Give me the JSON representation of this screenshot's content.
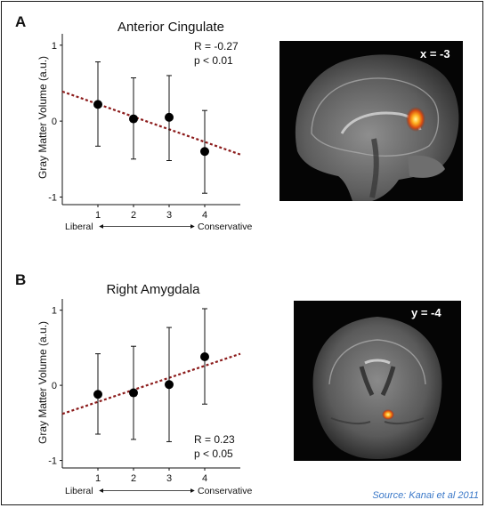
{
  "chart_data": [
    {
      "panel": "A",
      "type": "scatter",
      "title": "Anterior Cingulate",
      "ylabel": "Gray Matter Volume (a.u.)",
      "x": [
        1,
        2,
        3,
        4
      ],
      "y": [
        0.22,
        0.03,
        0.05,
        -0.4
      ],
      "yerr_low": [
        -0.33,
        -0.5,
        -0.52,
        -0.95
      ],
      "yerr_high": [
        0.78,
        0.57,
        0.6,
        0.14
      ],
      "trendline": {
        "x": [
          0,
          5
        ],
        "y": [
          0.39,
          -0.44
        ]
      },
      "xlim": [
        0,
        5
      ],
      "ylim": [
        -1.1,
        1.15
      ],
      "yticks": [
        "1",
        "0",
        "-1"
      ],
      "xticks": [
        "1",
        "2",
        "3",
        "4"
      ],
      "x_left_label": "Liberal",
      "x_right_label": "Conservative",
      "stats": [
        "R = -0.27",
        "p < 0.01"
      ],
      "image_label": "x = -3"
    },
    {
      "panel": "B",
      "type": "scatter",
      "title": "Right Amygdala",
      "ylabel": "Gray Matter Volume (a.u.)",
      "x": [
        1,
        2,
        3,
        4
      ],
      "y": [
        -0.12,
        -0.1,
        0.01,
        0.38
      ],
      "yerr_low": [
        -0.65,
        -0.72,
        -0.75,
        -0.25
      ],
      "yerr_high": [
        0.42,
        0.52,
        0.77,
        1.02
      ],
      "trendline": {
        "x": [
          0,
          5
        ],
        "y": [
          -0.38,
          0.42
        ]
      },
      "xlim": [
        0,
        5
      ],
      "ylim": [
        -1.1,
        1.15
      ],
      "yticks": [
        "1",
        "0",
        "-1"
      ],
      "xticks": [
        "1",
        "2",
        "3",
        "4"
      ],
      "x_left_label": "Liberal",
      "x_right_label": "Conservative",
      "stats": [
        "R = 0.23",
        "p < 0.05"
      ],
      "image_label": "y = -4"
    }
  ],
  "colors": {
    "trendline": "#8b1a1a",
    "points": "#000000",
    "source": "#3a78c8"
  },
  "source": "Source: Kanai et al 2011"
}
